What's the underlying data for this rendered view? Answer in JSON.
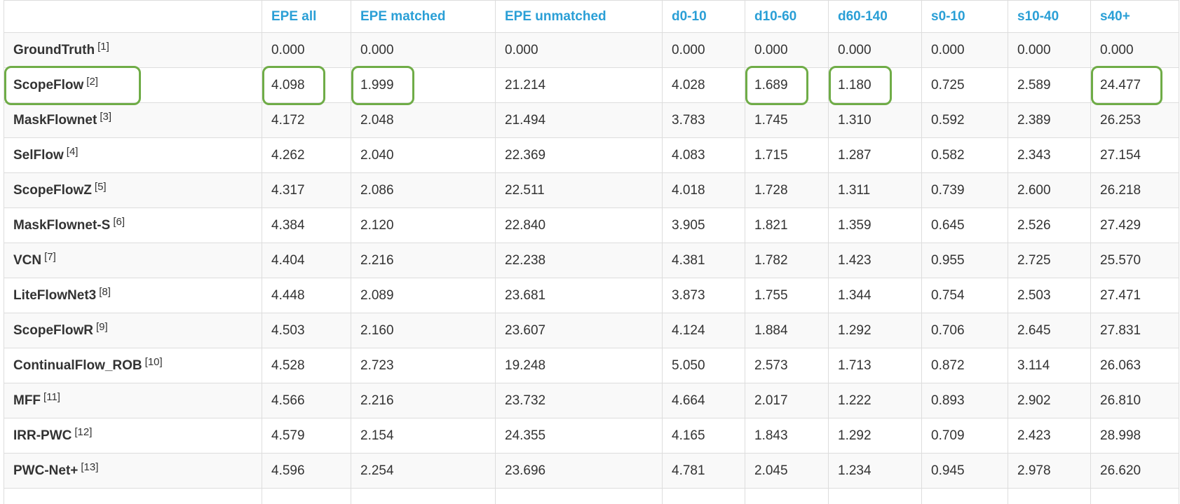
{
  "table": {
    "columns": [
      "",
      "EPE all",
      "EPE matched",
      "EPE unmatched",
      "d0-10",
      "d10-60",
      "d60-140",
      "s0-10",
      "s10-40",
      "s40+"
    ],
    "rows": [
      {
        "method": "GroundTruth",
        "ref": "[1]",
        "values": [
          "0.000",
          "0.000",
          "0.000",
          "0.000",
          "0.000",
          "0.000",
          "0.000",
          "0.000",
          "0.000"
        ]
      },
      {
        "method": "ScopeFlow",
        "ref": "[2]",
        "values": [
          "4.098",
          "1.999",
          "21.214",
          "4.028",
          "1.689",
          "1.180",
          "0.725",
          "2.589",
          "24.477"
        ]
      },
      {
        "method": "MaskFlownet",
        "ref": "[3]",
        "values": [
          "4.172",
          "2.048",
          "21.494",
          "3.783",
          "1.745",
          "1.310",
          "0.592",
          "2.389",
          "26.253"
        ]
      },
      {
        "method": "SelFlow",
        "ref": "[4]",
        "values": [
          "4.262",
          "2.040",
          "22.369",
          "4.083",
          "1.715",
          "1.287",
          "0.582",
          "2.343",
          "27.154"
        ]
      },
      {
        "method": "ScopeFlowZ",
        "ref": "[5]",
        "values": [
          "4.317",
          "2.086",
          "22.511",
          "4.018",
          "1.728",
          "1.311",
          "0.739",
          "2.600",
          "26.218"
        ]
      },
      {
        "method": "MaskFlownet-S",
        "ref": "[6]",
        "values": [
          "4.384",
          "2.120",
          "22.840",
          "3.905",
          "1.821",
          "1.359",
          "0.645",
          "2.526",
          "27.429"
        ]
      },
      {
        "method": "VCN",
        "ref": "[7]",
        "values": [
          "4.404",
          "2.216",
          "22.238",
          "4.381",
          "1.782",
          "1.423",
          "0.955",
          "2.725",
          "25.570"
        ]
      },
      {
        "method": "LiteFlowNet3",
        "ref": "[8]",
        "values": [
          "4.448",
          "2.089",
          "23.681",
          "3.873",
          "1.755",
          "1.344",
          "0.754",
          "2.503",
          "27.471"
        ]
      },
      {
        "method": "ScopeFlowR",
        "ref": "[9]",
        "values": [
          "4.503",
          "2.160",
          "23.607",
          "4.124",
          "1.884",
          "1.292",
          "0.706",
          "2.645",
          "27.831"
        ]
      },
      {
        "method": "ContinualFlow_ROB",
        "ref": "[10]",
        "values": [
          "4.528",
          "2.723",
          "19.248",
          "5.050",
          "2.573",
          "1.713",
          "0.872",
          "3.114",
          "26.063"
        ]
      },
      {
        "method": "MFF",
        "ref": "[11]",
        "values": [
          "4.566",
          "2.216",
          "23.732",
          "4.664",
          "2.017",
          "1.222",
          "0.893",
          "2.902",
          "26.810"
        ]
      },
      {
        "method": "IRR-PWC",
        "ref": "[12]",
        "values": [
          "4.579",
          "2.154",
          "24.355",
          "4.165",
          "1.843",
          "1.292",
          "0.709",
          "2.423",
          "28.998"
        ]
      },
      {
        "method": "PWC-Net+",
        "ref": "[13]",
        "values": [
          "4.596",
          "2.254",
          "23.696",
          "4.781",
          "2.045",
          "1.234",
          "0.945",
          "2.978",
          "26.620"
        ]
      },
      {
        "method": "",
        "ref": "",
        "values": [
          "",
          "",
          "",
          "",
          "",
          "",
          "",
          "",
          ""
        ]
      }
    ]
  },
  "highlights": [
    {
      "row": 1,
      "col": 0
    },
    {
      "row": 1,
      "col": 1
    },
    {
      "row": 1,
      "col": 2
    },
    {
      "row": 1,
      "col": 5
    },
    {
      "row": 1,
      "col": 6
    },
    {
      "row": 1,
      "col": 9
    }
  ],
  "colors": {
    "header_text": "#2a9fd6",
    "highlight_border": "#6fac47",
    "grid": "#dddddd",
    "stripe": "#f9f9f9"
  }
}
